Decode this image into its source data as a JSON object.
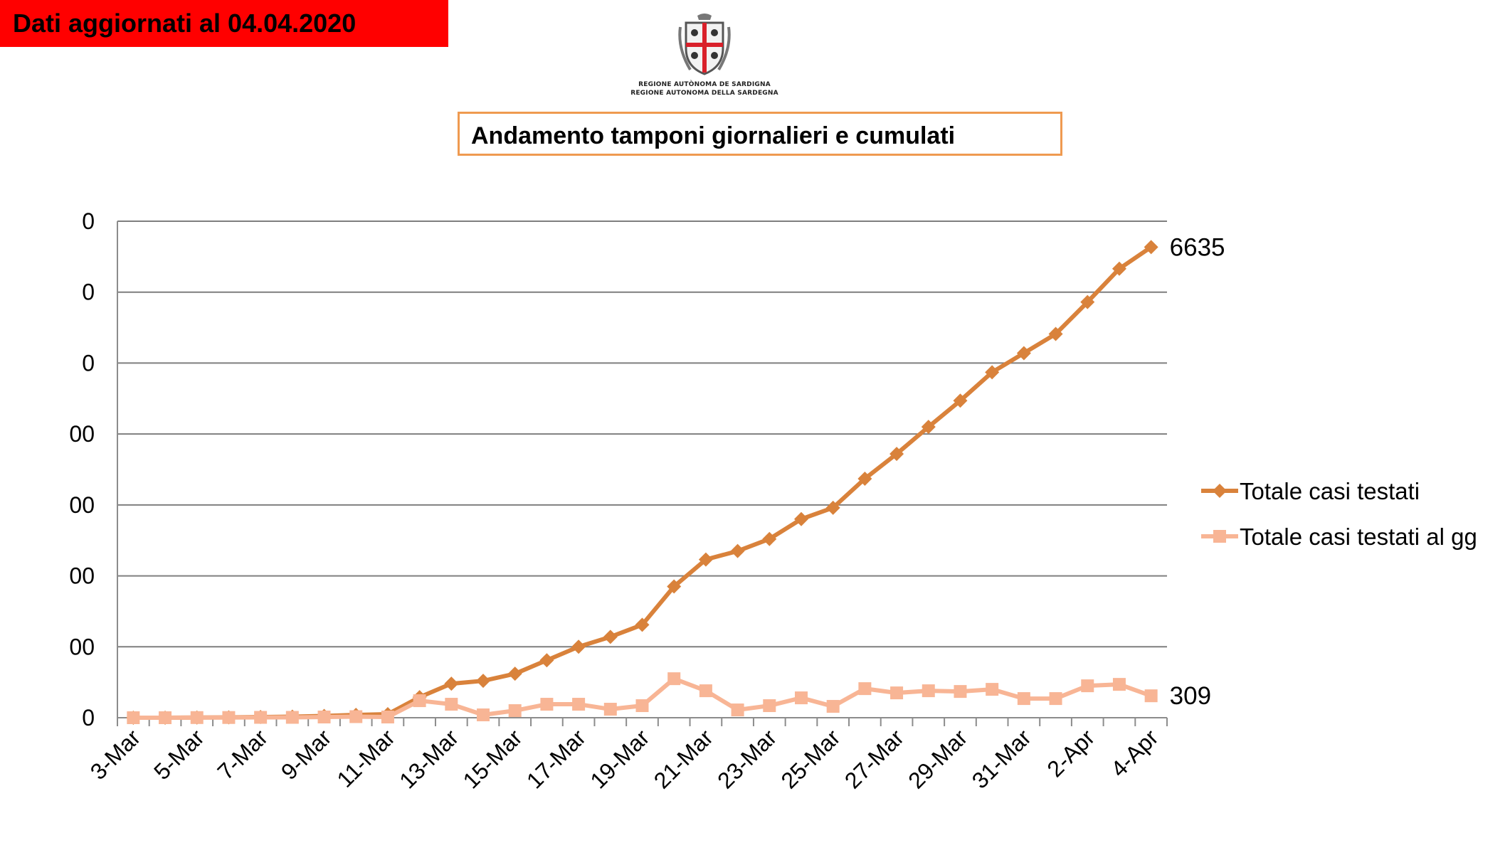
{
  "banner": {
    "text": "Dati aggiornati al 04.04.2020"
  },
  "logo": {
    "line1": "REGIONE AUTÒNOMA DE SARDIGNA",
    "line2": "REGIONE AUTONOMA DELLA SARDEGNA"
  },
  "colors": {
    "banner": "#ff0000",
    "title_border": "#ef9a50",
    "series_total": "#d9823b",
    "series_daily": "#f8b595",
    "grid": "#7f7f7f"
  },
  "chart_data": {
    "type": "line",
    "title": "Andamento tamponi giornalieri e cumulati",
    "xlabel": "",
    "ylabel": "",
    "ylim": [
      0,
      7000
    ],
    "y_ticks": [
      0,
      1000,
      2000,
      3000,
      4000,
      5000,
      6000,
      7000
    ],
    "y_tick_labels": [
      "0",
      "00",
      "00",
      "00",
      "00",
      "0",
      "0",
      "0"
    ],
    "grid": true,
    "legend_position": "right",
    "categories": [
      "3-Mar",
      "4-Mar",
      "5-Mar",
      "6-Mar",
      "7-Mar",
      "8-Mar",
      "9-Mar",
      "10-Mar",
      "11-Mar",
      "12-Mar",
      "13-Mar",
      "14-Mar",
      "15-Mar",
      "16-Mar",
      "17-Mar",
      "18-Mar",
      "19-Mar",
      "20-Mar",
      "21-Mar",
      "22-Mar",
      "23-Mar",
      "24-Mar",
      "25-Mar",
      "26-Mar",
      "27-Mar",
      "28-Mar",
      "29-Mar",
      "30-Mar",
      "31-Mar",
      "1-Apr",
      "2-Apr",
      "3-Apr",
      "4-Apr"
    ],
    "x_tick_labels": [
      "3-Mar",
      "5-Mar",
      "7-Mar",
      "9-Mar",
      "11-Mar",
      "13-Mar",
      "15-Mar",
      "17-Mar",
      "19-Mar",
      "21-Mar",
      "23-Mar",
      "25-Mar",
      "27-Mar",
      "29-Mar",
      "31-Mar",
      "2-Apr",
      "4-Apr"
    ],
    "series": [
      {
        "name": "Totale casi testati",
        "marker": "diamond",
        "values": [
          0,
          0,
          2,
          5,
          10,
          15,
          25,
          40,
          50,
          290,
          480,
          520,
          620,
          810,
          1000,
          1140,
          1310,
          1850,
          2230,
          2350,
          2520,
          2800,
          2960,
          3370,
          3720,
          4100,
          4470,
          4870,
          5140,
          5410,
          5860,
          6330,
          6635
        ],
        "end_label": "6635"
      },
      {
        "name": "Totale casi testati al gg",
        "marker": "square",
        "values": [
          0,
          0,
          2,
          3,
          5,
          5,
          10,
          15,
          10,
          240,
          190,
          40,
          100,
          190,
          190,
          120,
          170,
          550,
          380,
          110,
          170,
          280,
          160,
          410,
          350,
          380,
          370,
          400,
          270,
          270,
          450,
          470,
          309
        ],
        "end_label": "309"
      }
    ]
  }
}
